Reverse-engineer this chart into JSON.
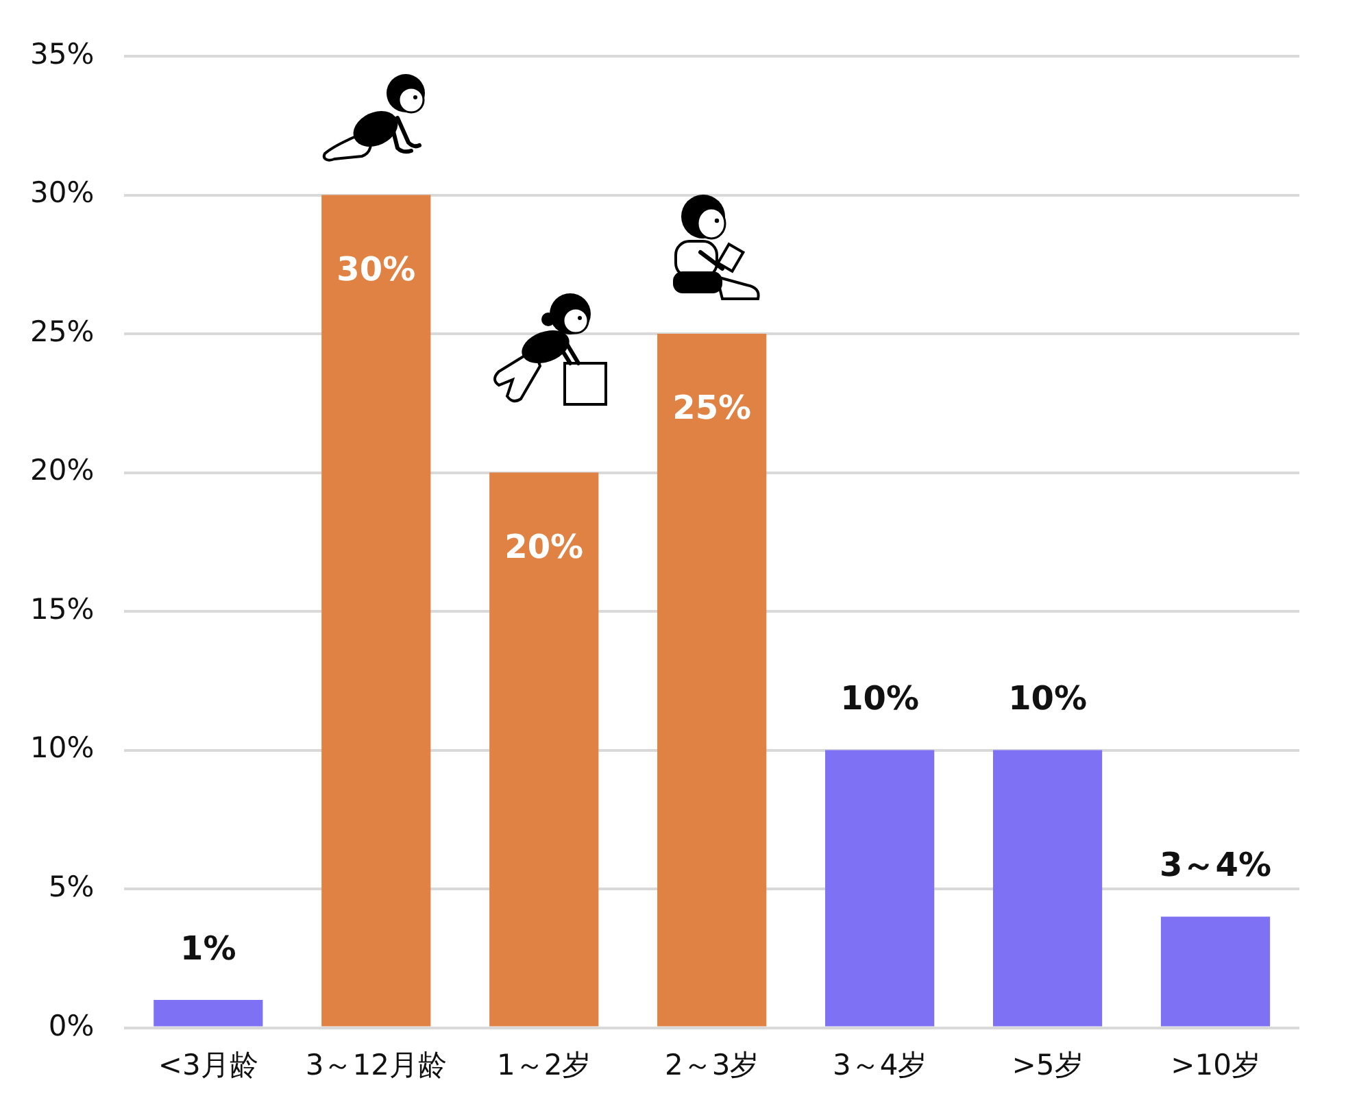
{
  "chart_data": {
    "type": "bar",
    "categories": [
      "<3月龄",
      "3～12月龄",
      "1～2岁",
      "2～3岁",
      "3～4岁",
      ">5岁",
      ">10岁"
    ],
    "values": [
      1,
      30,
      20,
      25,
      10,
      10,
      4
    ],
    "colors": [
      "#7f71f4",
      "#df8244",
      "#df8244",
      "#df8244",
      "#7f71f4",
      "#7f71f4",
      "#7f71f4"
    ],
    "value_labels": [
      "1%",
      "30%",
      "20%",
      "25%",
      "10%",
      "10%",
      "3～4%"
    ],
    "ylim": [
      0,
      35
    ],
    "yticks": [
      {
        "value": 0,
        "label": "0%"
      },
      {
        "value": 5,
        "label": "5%"
      },
      {
        "value": 10,
        "label": "10%"
      },
      {
        "value": 15,
        "label": "15%"
      },
      {
        "value": 20,
        "label": "20%"
      },
      {
        "value": 25,
        "label": "25%"
      },
      {
        "value": 30,
        "label": "30%"
      },
      {
        "value": 35,
        "label": "35%"
      }
    ],
    "grid": "y"
  }
}
